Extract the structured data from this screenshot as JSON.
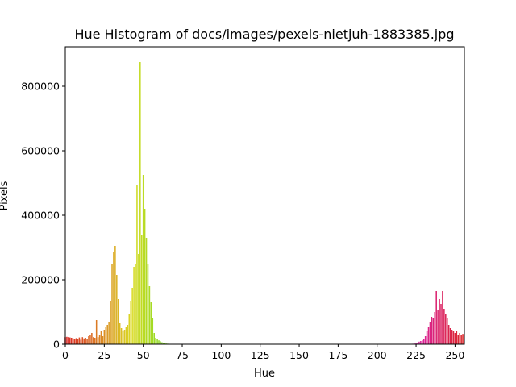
{
  "chart_data": {
    "type": "bar",
    "title": "Hue Histogram of docs/images/pexels-nietjuh-1883385.jpg",
    "x_label": "Hue",
    "y_label": "Pixels",
    "colormap": "hsv",
    "x": [
      0,
      1,
      2,
      3,
      4,
      5,
      6,
      7,
      8,
      9,
      10,
      11,
      12,
      13,
      14,
      15,
      16,
      17,
      18,
      19,
      20,
      21,
      22,
      23,
      24,
      25,
      26,
      27,
      28,
      29,
      30,
      31,
      32,
      33,
      34,
      35,
      36,
      37,
      38,
      39,
      40,
      41,
      42,
      43,
      44,
      45,
      46,
      47,
      48,
      49,
      50,
      51,
      52,
      53,
      54,
      55,
      56,
      57,
      58,
      59,
      60,
      61,
      62,
      63,
      64,
      65,
      66,
      67,
      68,
      69,
      70,
      71,
      72,
      73,
      74,
      75,
      76,
      77,
      78,
      79,
      80,
      81,
      82,
      83,
      84,
      85,
      86,
      87,
      88,
      89,
      90,
      91,
      92,
      93,
      94,
      95,
      96,
      97,
      98,
      99,
      100,
      101,
      102,
      103,
      104,
      105,
      106,
      107,
      108,
      109,
      110,
      111,
      112,
      113,
      114,
      115,
      116,
      117,
      118,
      119,
      120,
      121,
      122,
      123,
      124,
      125,
      126,
      127,
      128,
      129,
      130,
      131,
      132,
      133,
      134,
      135,
      136,
      137,
      138,
      139,
      140,
      141,
      142,
      143,
      144,
      145,
      146,
      147,
      148,
      149,
      150,
      151,
      152,
      153,
      154,
      155,
      156,
      157,
      158,
      159,
      160,
      161,
      162,
      163,
      164,
      165,
      166,
      167,
      168,
      169,
      170,
      171,
      172,
      173,
      174,
      175,
      176,
      177,
      178,
      179,
      180,
      181,
      182,
      183,
      184,
      185,
      186,
      187,
      188,
      189,
      190,
      191,
      192,
      193,
      194,
      195,
      196,
      197,
      198,
      199,
      200,
      201,
      202,
      203,
      204,
      205,
      206,
      207,
      208,
      209,
      210,
      211,
      212,
      213,
      214,
      215,
      216,
      217,
      218,
      219,
      220,
      221,
      222,
      223,
      224,
      225,
      226,
      227,
      228,
      229,
      230,
      231,
      232,
      233,
      234,
      235,
      236,
      237,
      238,
      239,
      240,
      241,
      242,
      243,
      244,
      245,
      246,
      247,
      248,
      249,
      250,
      251,
      252,
      253,
      254,
      255
    ],
    "values": [
      22000,
      23000,
      22000,
      21000,
      20000,
      18000,
      17000,
      19000,
      16000,
      21000,
      14000,
      22000,
      18000,
      20000,
      17000,
      25000,
      30000,
      35000,
      22000,
      20000,
      75000,
      22000,
      30000,
      40000,
      25000,
      45000,
      55000,
      60000,
      70000,
      135000,
      250000,
      285000,
      305000,
      215000,
      140000,
      65000,
      50000,
      40000,
      45000,
      55000,
      60000,
      95000,
      135000,
      175000,
      240000,
      250000,
      495000,
      280000,
      875000,
      340000,
      525000,
      420000,
      330000,
      250000,
      180000,
      130000,
      80000,
      35000,
      20000,
      15000,
      12000,
      9000,
      6000,
      5000,
      3000,
      2000,
      1500,
      1000,
      800,
      600,
      500,
      400,
      300,
      300,
      200,
      200,
      100,
      100,
      100,
      100,
      0,
      0,
      0,
      0,
      0,
      0,
      0,
      0,
      0,
      0,
      0,
      0,
      0,
      0,
      0,
      0,
      0,
      0,
      0,
      0,
      0,
      0,
      0,
      0,
      0,
      0,
      0,
      0,
      0,
      0,
      0,
      0,
      0,
      0,
      0,
      0,
      0,
      0,
      0,
      0,
      0,
      0,
      0,
      0,
      0,
      0,
      0,
      0,
      0,
      0,
      0,
      0,
      0,
      0,
      0,
      0,
      0,
      0,
      0,
      0,
      0,
      0,
      0,
      0,
      0,
      0,
      0,
      0,
      0,
      0,
      0,
      0,
      0,
      0,
      0,
      0,
      0,
      0,
      0,
      0,
      0,
      0,
      0,
      0,
      0,
      0,
      0,
      0,
      0,
      0,
      0,
      0,
      0,
      0,
      0,
      0,
      0,
      0,
      0,
      0,
      0,
      0,
      0,
      0,
      0,
      0,
      0,
      0,
      0,
      0,
      0,
      0,
      0,
      0,
      0,
      0,
      0,
      0,
      0,
      0,
      0,
      0,
      0,
      0,
      0,
      0,
      0,
      0,
      0,
      0,
      0,
      0,
      0,
      0,
      0,
      0,
      0,
      0,
      0,
      0,
      500,
      800,
      1000,
      1500,
      2000,
      3000,
      5000,
      8000,
      10000,
      12000,
      15000,
      25000,
      40000,
      55000,
      70000,
      85000,
      80000,
      100000,
      165000,
      105000,
      140000,
      125000,
      165000,
      110000,
      95000,
      80000,
      60000,
      50000,
      45000,
      40000,
      35000,
      42000,
      30000,
      35000,
      30000,
      32000
    ],
    "xlim": [
      0,
      256
    ],
    "ylim": [
      0,
      922500
    ],
    "xticks": [
      0,
      25,
      50,
      75,
      100,
      125,
      150,
      175,
      200,
      225,
      250
    ],
    "yticks": [
      0,
      200000,
      400000,
      600000,
      800000
    ]
  }
}
